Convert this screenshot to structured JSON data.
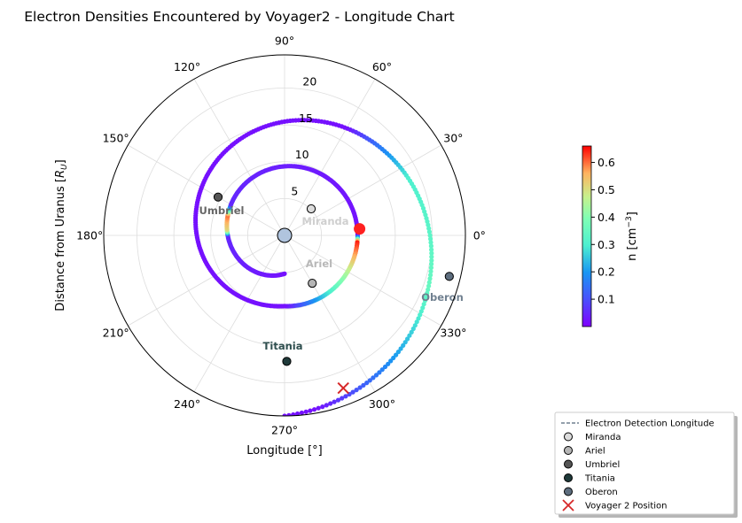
{
  "chart_data": {
    "type": "polar-scatter",
    "title": "Electron Densities Encountered by Voyager2 - Longitude Chart",
    "xlabel": "Longitude [°]",
    "ylabel": "Distance from Uranus [R_U]",
    "radial_ticks": [
      5,
      10,
      15,
      20
    ],
    "rmax": 24.5,
    "angle_ticks": [
      {
        "deg": 0,
        "label": "0°"
      },
      {
        "deg": 30,
        "label": "30°"
      },
      {
        "deg": 60,
        "label": "60°"
      },
      {
        "deg": 90,
        "label": "90°"
      },
      {
        "deg": 120,
        "label": "120°"
      },
      {
        "deg": 150,
        "label": "150°"
      },
      {
        "deg": 180,
        "label": "180°"
      },
      {
        "deg": 210,
        "label": "210°"
      },
      {
        "deg": 240,
        "label": "240°"
      },
      {
        "deg": 270,
        "label": "270°"
      },
      {
        "deg": 300,
        "label": "300°"
      },
      {
        "deg": 330,
        "label": "330°"
      }
    ],
    "grid": true,
    "colorbar": {
      "label": "n [cm⁻³]",
      "ticks": [
        0.1,
        0.2,
        0.3,
        0.4,
        0.5,
        0.6
      ],
      "min": 0.0,
      "max": 0.66,
      "colormap": "rainbow"
    },
    "trajectory": {
      "name": "Electron Detection Longitude",
      "spiral": {
        "start_r": 5.2,
        "start_theta_deg": 270,
        "end_r": 24.5,
        "end_theta_deg": -90,
        "turns_clockwise_deg": 720
      },
      "density_profile": [
        {
          "theta_deg": 270,
          "n": 0.02
        },
        {
          "theta_deg": 180,
          "n": 0.05
        },
        {
          "theta_deg": 175,
          "n": 0.5
        },
        {
          "theta_deg": 160,
          "n": 0.6
        },
        {
          "theta_deg": 150,
          "n": 0.05
        },
        {
          "theta_deg": 0,
          "n": 0.02
        },
        {
          "theta_deg": -5,
          "n": 0.65
        },
        {
          "theta_deg": -90,
          "n": 0.02
        },
        {
          "theta_deg": -180,
          "n": 0.02
        },
        {
          "theta_deg": -300,
          "n": 0.02
        },
        {
          "theta_deg": -335,
          "n": 0.3
        },
        {
          "theta_deg": -380,
          "n": 0.35
        },
        {
          "theta_deg": -400,
          "n": 0.25
        },
        {
          "theta_deg": -440,
          "n": 0.02
        }
      ]
    },
    "moons": [
      {
        "name": "Miranda",
        "r": 5.1,
        "theta_deg": 45,
        "color": "#dcdcdc",
        "label_color": "#cfcfcf"
      },
      {
        "name": "Ariel",
        "r": 7.5,
        "theta_deg": 300,
        "color": "#b5b5b5",
        "label_color": "#b8b8b8"
      },
      {
        "name": "Umbriel",
        "r": 10.4,
        "theta_deg": 150,
        "color": "#555555",
        "label_color": "#666666"
      },
      {
        "name": "Titania",
        "r": 17.1,
        "theta_deg": 271,
        "color": "#1f3a3a",
        "label_color": "#2f4f4f"
      },
      {
        "name": "Oberon",
        "r": 23.0,
        "theta_deg": 346,
        "color": "#5d6d7e",
        "label_color": "#708090"
      }
    ],
    "uranus": {
      "r": 0,
      "color": "#b0c4de"
    },
    "voyager": {
      "name": "Voyager 2 Position",
      "r": 22.2,
      "theta_deg": 291,
      "color": "#d62728"
    },
    "red_marker": {
      "r": 10.2,
      "theta_deg": 5,
      "color": "#ff2020"
    },
    "legend": {
      "placement": "bottom-right",
      "entries": [
        {
          "label": "Electron Detection Longitude",
          "kind": "dashed-line",
          "color": "#708090"
        },
        {
          "label": "Miranda",
          "kind": "circle",
          "color": "#dcdcdc"
        },
        {
          "label": "Ariel",
          "kind": "circle",
          "color": "#b5b5b5"
        },
        {
          "label": "Umbriel",
          "kind": "circle",
          "color": "#555555"
        },
        {
          "label": "Titania",
          "kind": "circle",
          "color": "#1f3a3a"
        },
        {
          "label": "Oberon",
          "kind": "circle",
          "color": "#5d6d7e"
        },
        {
          "label": "Voyager 2 Position",
          "kind": "x",
          "color": "#d62728"
        }
      ]
    }
  }
}
